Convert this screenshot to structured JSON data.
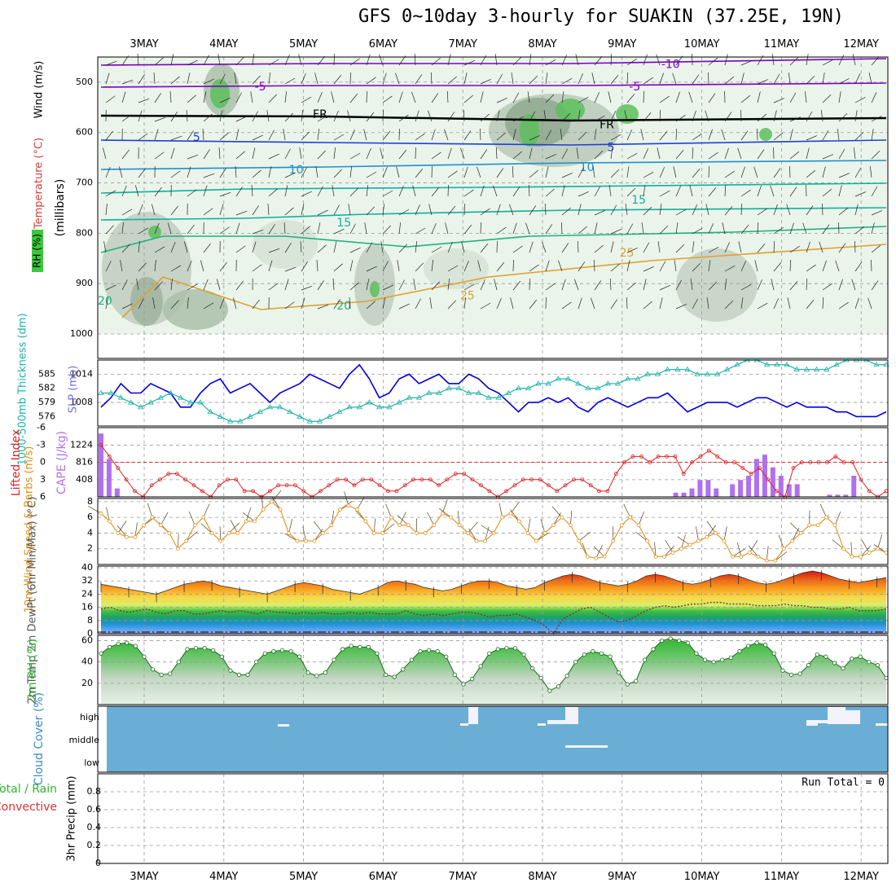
{
  "title": "GFS 0~10day 3-hourly for SUAKIN (37.25E, 19N)",
  "dates": [
    "3MAY",
    "4MAY",
    "5MAY",
    "6MAY",
    "7MAY",
    "8MAY",
    "9MAY",
    "10MAY",
    "11MAY",
    "12MAY"
  ],
  "run_total": "Run Total = 0",
  "colors": {
    "temp_label": "#a020f0",
    "rh_fill": "#3cb43c",
    "slp": "#0000dd",
    "thickness": "#20b2aa",
    "lifted": "#dd2222",
    "cape": "#b070f0",
    "wind10": "#e0901a",
    "rh2m": "#2eb82e",
    "cloud": "#6aaed6"
  },
  "chart_data": [
    {
      "id": "upper",
      "type": "heatmap",
      "ylabel_rh": "RH (%)",
      "ylabel_temp": "Temperature (°C)",
      "ylabel_wind": "Wind (m/s)",
      "ylabel_axis": "(millibars)",
      "yticks": [
        500,
        600,
        700,
        800,
        900,
        1000
      ],
      "ylim": [
        450,
        1000
      ],
      "contour_labels": [
        {
          "text": "-10",
          "x_day": 7.15,
          "p": 465,
          "color": "#8000c0"
        },
        {
          "text": "-5",
          "x_day": 2.0,
          "p": 510,
          "color": "#8000c0"
        },
        {
          "text": "-5",
          "x_day": 6.7,
          "p": 510,
          "color": "#8000c0"
        },
        {
          "text": "FR",
          "x_day": 2.75,
          "p": 565,
          "color": "#000000"
        },
        {
          "text": "FR",
          "x_day": 6.35,
          "p": 585,
          "color": "#000000"
        },
        {
          "text": "5",
          "x_day": 1.2,
          "p": 610,
          "color": "#2040d0"
        },
        {
          "text": "5",
          "x_day": 6.4,
          "p": 630,
          "color": "#2040d0"
        },
        {
          "text": "10",
          "x_day": 2.45,
          "p": 675,
          "color": "#1e90d0"
        },
        {
          "text": "10",
          "x_day": 6.1,
          "p": 670,
          "color": "#1e90d0"
        },
        {
          "text": "15",
          "x_day": 6.75,
          "p": 735,
          "color": "#10b0a0"
        },
        {
          "text": "15",
          "x_day": 3.05,
          "p": 780,
          "color": "#10b0a0"
        },
        {
          "text": "20",
          "x_day": 0.05,
          "p": 935,
          "color": "#20b080"
        },
        {
          "text": "20",
          "x_day": 3.05,
          "p": 945,
          "color": "#20b080"
        },
        {
          "text": "25",
          "x_day": 6.6,
          "p": 840,
          "color": "#e0a030"
        },
        {
          "text": "25",
          "x_day": 4.6,
          "p": 925,
          "color": "#e0a030"
        }
      ]
    },
    {
      "id": "slp_thickness",
      "type": "line",
      "ylabel_left": "1000-500mb Thickness (dm)",
      "ylabel_right": "SLP (mb)",
      "thickness_ticks": [
        576,
        579,
        582,
        585
      ],
      "slp_ticks": [
        1008,
        1014
      ],
      "series": [
        {
          "name": "SLP",
          "unit": "mb",
          "values": [
            1007,
            1009,
            1012,
            1010,
            1010,
            1012,
            1011,
            1010,
            1007,
            1007,
            1010,
            1012,
            1013,
            1010,
            1011,
            1012,
            1010,
            1008,
            1010,
            1011,
            1012,
            1014,
            1013,
            1012,
            1011,
            1014,
            1016,
            1013,
            1009,
            1010,
            1013,
            1014,
            1012,
            1013,
            1014,
            1012,
            1012,
            1014,
            1013,
            1011,
            1010,
            1008,
            1006,
            1008,
            1008,
            1009,
            1008,
            1009,
            1007,
            1006,
            1008,
            1009,
            1008,
            1007,
            1008,
            1009,
            1009,
            1010,
            1008,
            1006,
            1007,
            1008,
            1008,
            1008,
            1007,
            1008,
            1009,
            1009,
            1008,
            1007,
            1008,
            1007,
            1007,
            1007,
            1006,
            1006,
            1005,
            1005,
            1005,
            1006
          ]
        },
        {
          "name": "Thickness",
          "unit": "dm",
          "values": [
            581,
            581,
            580,
            579,
            578,
            579,
            580,
            581,
            580,
            579,
            579,
            577,
            576,
            575,
            575,
            576,
            577,
            578,
            578,
            577,
            576,
            575,
            575,
            576,
            577,
            578,
            578,
            579,
            578,
            578,
            579,
            580,
            580,
            581,
            581,
            582,
            582,
            581,
            581,
            580,
            580,
            581,
            582,
            582,
            583,
            583,
            584,
            584,
            583,
            582,
            582,
            583,
            583,
            584,
            584,
            585,
            585,
            586,
            586,
            586,
            585,
            585,
            585,
            586,
            587,
            588,
            588,
            587,
            587,
            587,
            586,
            586,
            586,
            586,
            587,
            588,
            588,
            588,
            587,
            587
          ]
        }
      ]
    },
    {
      "id": "li_cape",
      "type": "bar",
      "ylabel_left": "Lifted Index",
      "ylabel_right": "CAPE (J/kg)",
      "li_ticks": [
        "-6",
        "-3",
        "0",
        "3",
        "6"
      ],
      "cape_ticks": [
        "408",
        "816",
        "1224"
      ],
      "series": [
        {
          "name": "Lifted Index",
          "values": [
            -3,
            -1,
            1,
            3,
            5,
            6,
            4,
            3,
            2,
            2,
            3,
            4,
            5,
            6,
            4,
            3,
            3,
            5,
            5,
            6,
            5,
            4,
            4,
            4,
            5,
            6,
            5,
            4,
            3,
            3,
            4,
            3,
            3,
            4,
            5,
            5,
            4,
            3,
            3,
            3,
            4,
            3,
            2,
            2,
            3,
            4,
            5,
            6,
            5,
            4,
            3,
            3,
            3,
            4,
            5,
            4,
            3,
            3,
            4,
            5,
            5,
            2,
            0,
            -1,
            -1,
            0,
            -1,
            -1,
            -1,
            2,
            0,
            -1,
            -2,
            -1,
            0,
            0,
            1,
            2,
            1,
            3,
            5,
            6,
            1,
            0,
            0,
            0,
            0,
            -1,
            0,
            0,
            3,
            5,
            6,
            5
          ]
        },
        {
          "name": "CAPE",
          "values": [
            1500,
            900,
            200,
            0,
            0,
            0,
            0,
            0,
            0,
            0,
            0,
            0,
            0,
            0,
            0,
            0,
            0,
            0,
            0,
            0,
            0,
            0,
            0,
            0,
            0,
            0,
            0,
            0,
            0,
            0,
            0,
            0,
            0,
            0,
            0,
            0,
            0,
            0,
            0,
            0,
            0,
            0,
            0,
            0,
            0,
            0,
            0,
            0,
            0,
            0,
            0,
            0,
            0,
            0,
            0,
            0,
            0,
            0,
            0,
            0,
            0,
            0,
            0,
            0,
            0,
            0,
            0,
            0,
            0,
            0,
            0,
            100,
            100,
            200,
            400,
            400,
            200,
            0,
            300,
            400,
            500,
            900,
            1000,
            700,
            500,
            300,
            300,
            0,
            0,
            0,
            50,
            50,
            50,
            500,
            0,
            0,
            0,
            0
          ]
        }
      ]
    },
    {
      "id": "wind10m",
      "type": "line",
      "ylabel": "10m Wind Speed & Barbs (m/s)",
      "yticks": [
        2,
        4,
        6,
        8
      ],
      "ylim": [
        0,
        8
      ],
      "series": [
        {
          "name": "10m Wind Speed",
          "values": [
            6.5,
            5.5,
            4,
            3.5,
            3.5,
            5,
            6,
            5,
            4,
            2,
            3,
            5,
            6,
            4,
            3,
            4,
            4,
            5.5,
            5.5,
            7,
            8,
            7,
            4,
            3,
            3,
            3,
            4,
            5,
            7,
            7.5,
            7,
            5.5,
            4,
            4,
            6,
            5,
            5,
            4,
            4,
            5,
            6.5,
            6,
            5,
            4,
            3,
            3,
            4,
            6,
            6.5,
            5.5,
            4,
            3,
            4,
            5,
            6,
            5,
            3,
            1,
            0.8,
            1,
            3,
            5,
            6,
            5,
            3,
            1,
            1,
            1.5,
            2,
            2.5,
            3,
            3.5,
            4,
            3,
            1,
            1,
            1.5,
            1,
            0.5,
            0.5,
            2,
            3,
            4,
            5,
            5,
            6,
            5,
            2,
            1,
            1,
            1.5,
            2,
            1.5
          ]
        }
      ]
    },
    {
      "id": "temp2m",
      "type": "area",
      "ylabel": "2m Temp 2m DewPt (6hr Min/Max) (°C)",
      "yticks": [
        0,
        8,
        16,
        24,
        32,
        40
      ],
      "ylim": [
        0,
        40
      ],
      "series": [
        {
          "name": "2m Temp",
          "values": [
            30,
            29,
            28,
            27,
            26,
            25,
            24,
            26,
            28,
            30,
            31,
            32,
            31,
            29,
            28,
            27,
            26,
            25,
            24,
            26,
            28,
            30,
            31,
            30,
            29,
            27,
            26,
            25,
            24,
            26,
            28,
            31,
            32,
            31,
            30,
            28,
            27,
            26,
            27,
            29,
            31,
            32,
            32,
            31,
            29,
            28,
            27,
            28,
            31,
            33,
            35,
            36,
            35,
            33,
            31,
            30,
            29,
            30,
            32,
            35,
            36,
            35,
            33,
            31,
            30,
            31,
            33,
            35,
            36,
            35,
            33,
            31,
            30,
            31,
            33,
            35,
            37,
            38,
            37,
            35,
            33,
            32,
            31,
            32,
            33,
            34
          ]
        },
        {
          "name": "2m DewPt",
          "values": [
            15,
            16,
            14,
            13,
            14,
            15,
            13,
            12,
            14,
            14,
            12,
            12,
            13,
            14,
            13,
            14,
            13,
            12,
            14,
            13,
            13,
            12,
            13,
            12,
            13,
            12,
            12,
            13,
            12,
            13,
            12,
            12,
            12,
            14,
            12,
            11,
            12,
            11,
            12,
            13,
            13,
            12,
            10,
            11,
            11,
            12,
            10,
            8,
            5,
            0,
            9,
            12,
            15,
            16,
            13,
            10,
            7,
            8,
            11,
            14,
            16,
            17,
            16,
            17,
            18,
            18,
            19,
            19,
            18,
            18,
            18,
            17,
            17,
            17,
            18,
            17,
            17,
            16,
            16,
            15,
            15,
            16,
            14,
            14,
            14,
            15
          ]
        }
      ]
    },
    {
      "id": "rh2m",
      "type": "area",
      "ylabel": "2m RH (%)",
      "yticks": [
        20,
        40,
        60
      ],
      "ylim": [
        0,
        65
      ],
      "series": [
        {
          "name": "2m RH",
          "values": [
            48,
            54,
            57,
            58,
            55,
            45,
            33,
            28,
            29,
            40,
            52,
            53,
            53,
            51,
            45,
            32,
            28,
            28,
            40,
            48,
            50,
            51,
            50,
            45,
            30,
            27,
            30,
            42,
            52,
            55,
            54,
            54,
            48,
            28,
            26,
            33,
            42,
            50,
            51,
            50,
            45,
            28,
            19,
            24,
            36,
            48,
            52,
            53,
            53,
            47,
            34,
            25,
            13,
            17,
            27,
            40,
            47,
            50,
            48,
            45,
            30,
            19,
            22,
            42,
            52,
            60,
            62,
            60,
            58,
            48,
            42,
            40,
            42,
            44,
            50,
            55,
            58,
            56,
            48,
            32,
            28,
            29,
            37,
            47,
            45,
            39,
            34,
            43,
            45,
            40,
            37,
            25
          ]
        }
      ]
    },
    {
      "id": "cloud",
      "type": "heatmap",
      "ylabel": "Cloud Cover (%)",
      "levels": [
        "high",
        "middle",
        "low"
      ]
    },
    {
      "id": "precip",
      "type": "bar",
      "ylabel_left": "Total / Rain",
      "ylabel_left2": "Convective",
      "ylabel": "3hr Precip (mm)",
      "yticks": [
        "0",
        "0.2",
        "0.4",
        "0.6",
        "0.8"
      ],
      "ylim": [
        0,
        1
      ],
      "values": []
    }
  ]
}
